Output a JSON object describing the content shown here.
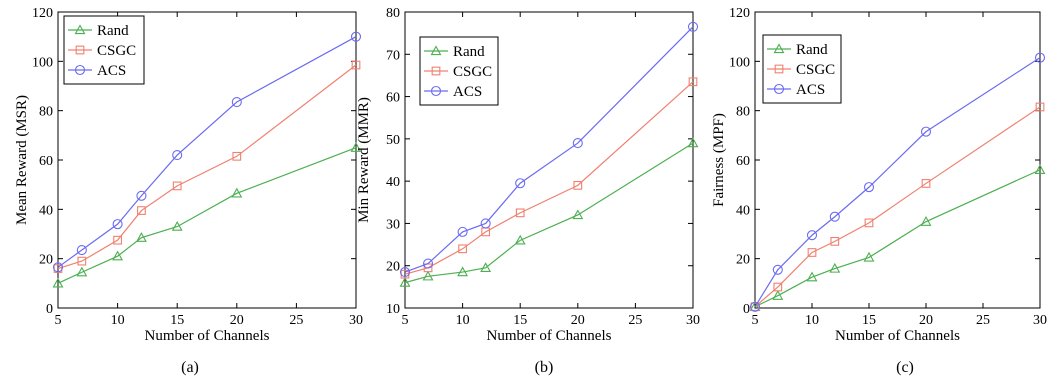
{
  "chart_data": [
    {
      "type": "line",
      "caption": "(a)",
      "xlabel": "Number of Channels",
      "ylabel": "Mean Reward (MSR)",
      "xlim": [
        5,
        30
      ],
      "ylim": [
        0,
        120
      ],
      "xticks": [
        5,
        10,
        15,
        20,
        25,
        30
      ],
      "yticks": [
        0,
        20,
        40,
        60,
        80,
        100,
        120
      ],
      "grid": false,
      "legend_position": "top-left",
      "x": [
        5,
        7,
        10,
        12,
        15,
        20,
        30
      ],
      "series": [
        {
          "name": "Rand",
          "color": "#4caf50",
          "marker": "triangle",
          "values": [
            10,
            14.5,
            21,
            28.5,
            33,
            46.5,
            65
          ]
        },
        {
          "name": "CSGC",
          "color": "#f08070",
          "marker": "square",
          "values": [
            16,
            19,
            27.5,
            39.5,
            49.5,
            61.5,
            98.5
          ]
        },
        {
          "name": "ACS",
          "color": "#6b6bf2",
          "marker": "circle",
          "values": [
            16.5,
            23.5,
            34,
            45.5,
            62,
            83.5,
            110
          ]
        }
      ]
    },
    {
      "type": "line",
      "caption": "(b)",
      "xlabel": "Number of Channels",
      "ylabel": "Min Reward (MMR)",
      "xlim": [
        5,
        30
      ],
      "ylim": [
        10,
        80
      ],
      "xticks": [
        5,
        10,
        15,
        20,
        25,
        30
      ],
      "yticks": [
        10,
        20,
        30,
        40,
        50,
        60,
        70,
        80
      ],
      "grid": false,
      "legend_position": "top-left",
      "x": [
        5,
        7,
        10,
        12,
        15,
        20,
        30
      ],
      "series": [
        {
          "name": "Rand",
          "color": "#4caf50",
          "marker": "triangle",
          "values": [
            16,
            17.5,
            18.5,
            19.5,
            26,
            32,
            49
          ]
        },
        {
          "name": "CSGC",
          "color": "#f08070",
          "marker": "square",
          "values": [
            18,
            19.5,
            24,
            28,
            32.5,
            39,
            63.5
          ]
        },
        {
          "name": "ACS",
          "color": "#6b6bf2",
          "marker": "circle",
          "values": [
            18.5,
            20.5,
            28,
            30,
            39.5,
            49,
            76.5
          ]
        }
      ]
    },
    {
      "type": "line",
      "caption": "(c)",
      "xlabel": "Number of Channels",
      "ylabel": "Fairness (MPF)",
      "xlim": [
        5,
        30
      ],
      "ylim": [
        0,
        120
      ],
      "xticks": [
        5,
        10,
        15,
        20,
        25,
        30
      ],
      "yticks": [
        0,
        20,
        40,
        60,
        80,
        100,
        120
      ],
      "grid": false,
      "legend_position": "top-left",
      "x": [
        5,
        7,
        10,
        12,
        15,
        20,
        30
      ],
      "series": [
        {
          "name": "Rand",
          "color": "#4caf50",
          "marker": "triangle",
          "values": [
            0.5,
            5,
            12.5,
            16,
            20.5,
            35,
            56
          ]
        },
        {
          "name": "CSGC",
          "color": "#f08070",
          "marker": "square",
          "values": [
            0.5,
            8.5,
            22.5,
            27,
            34.5,
            50.5,
            81.5
          ]
        },
        {
          "name": "ACS",
          "color": "#6b6bf2",
          "marker": "circle",
          "values": [
            0.5,
            15.5,
            29.5,
            37,
            49,
            71.5,
            101.5
          ]
        }
      ]
    }
  ]
}
